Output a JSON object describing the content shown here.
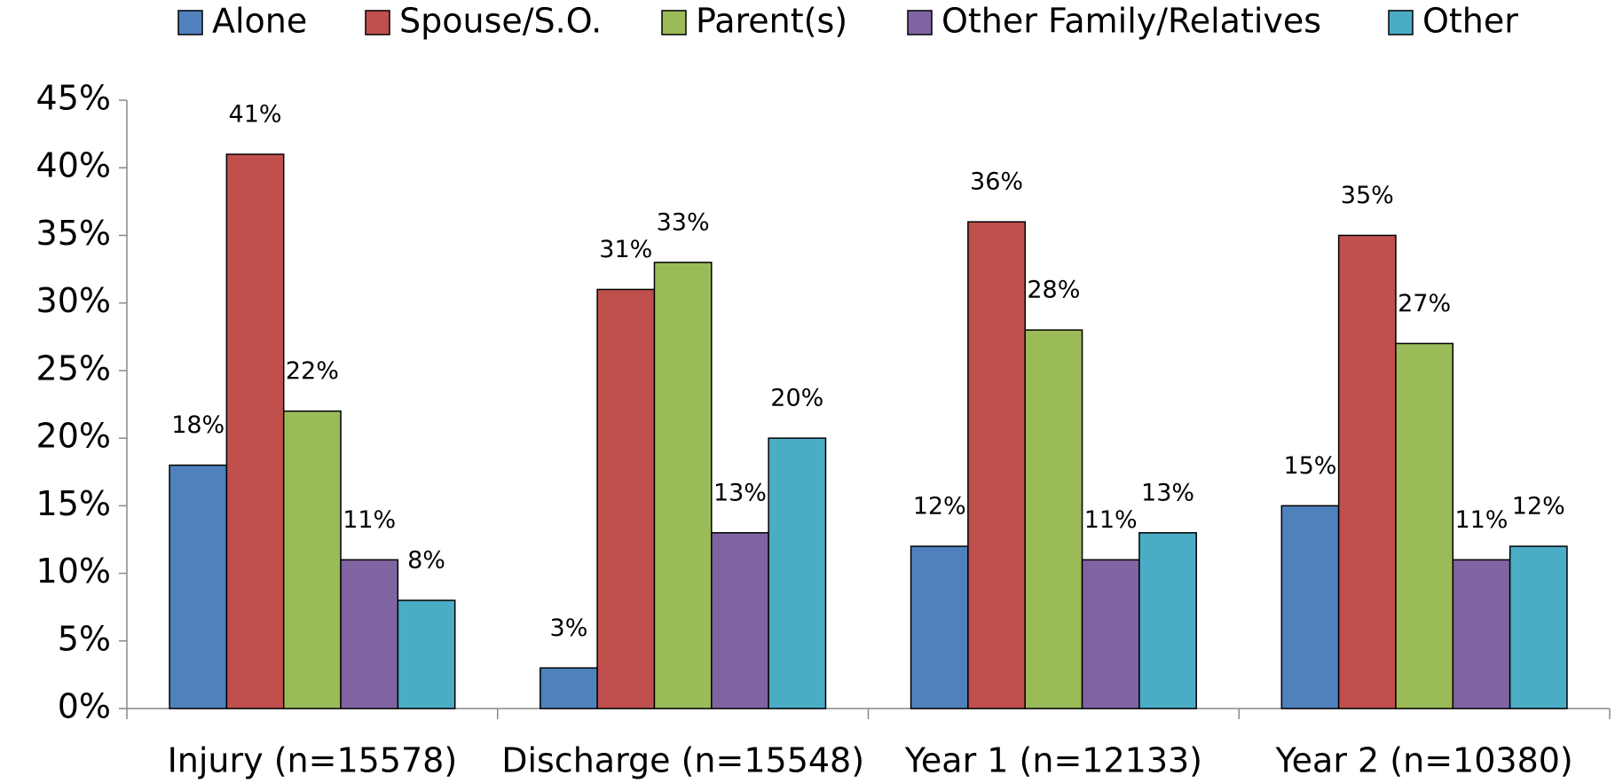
{
  "chart_data": {
    "type": "bar",
    "categories": [
      "Injury (n=15578)",
      "Discharge (n=15548)",
      "Year 1 (n=12133)",
      "Year 2 (n=10380)"
    ],
    "series": [
      {
        "name": "Alone",
        "color": "#4f81bd",
        "values": [
          18,
          3,
          12,
          15
        ],
        "value_labels": [
          "18%",
          "3%",
          "12%",
          "15%"
        ]
      },
      {
        "name": "Spouse/S.O.",
        "color": "#c0504d",
        "values": [
          41,
          31,
          36,
          35
        ],
        "value_labels": [
          "41%",
          "31%",
          "36%",
          "35%"
        ]
      },
      {
        "name": "Parent(s)",
        "color": "#9bbb59",
        "values": [
          22,
          33,
          28,
          27
        ],
        "value_labels": [
          "22%",
          "33%",
          "28%",
          "27%"
        ]
      },
      {
        "name": "Other Family/Relatives",
        "color": "#8064a2",
        "values": [
          11,
          13,
          11,
          11
        ],
        "value_labels": [
          "11%",
          "13%",
          "11%",
          "11%"
        ]
      },
      {
        "name": "Other",
        "color": "#4bacc6",
        "values": [
          8,
          20,
          13,
          12
        ],
        "value_labels": [
          "8%",
          "20%",
          "13%",
          "12%"
        ]
      }
    ],
    "ylim": [
      0,
      45
    ],
    "yticks": [
      {
        "value": 0,
        "label": "0%"
      },
      {
        "value": 5,
        "label": "5%"
      },
      {
        "value": 10,
        "label": "10%"
      },
      {
        "value": 15,
        "label": "15%"
      },
      {
        "value": 20,
        "label": "20%"
      },
      {
        "value": 25,
        "label": "25%"
      },
      {
        "value": 30,
        "label": "30%"
      },
      {
        "value": 35,
        "label": "35%"
      },
      {
        "value": 40,
        "label": "40%"
      },
      {
        "value": 45,
        "label": "45%"
      }
    ],
    "legend": "top"
  }
}
